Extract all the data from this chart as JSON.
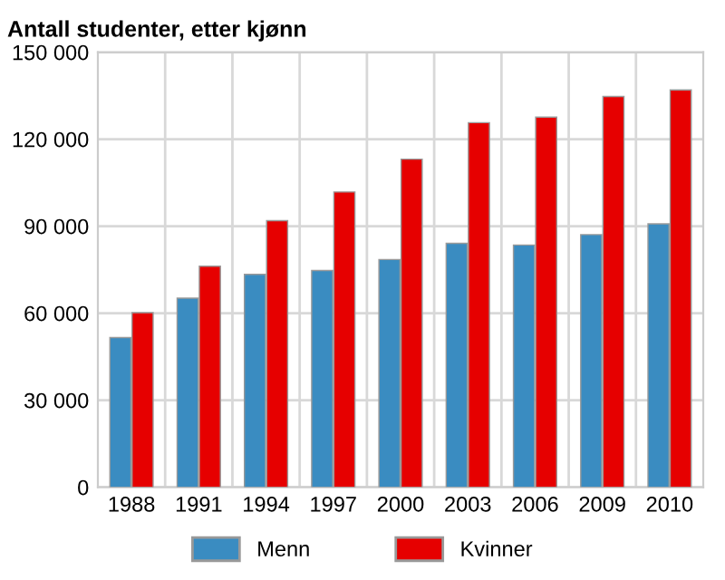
{
  "chart_data": {
    "type": "bar",
    "title": "Antall studenter, etter kjønn",
    "categories": [
      "1988",
      "1991",
      "1994",
      "1997",
      "2000",
      "2003",
      "2006",
      "2009",
      "2010"
    ],
    "series": [
      {
        "name": "Menn",
        "color": "#3a8cc1",
        "values": [
          51600,
          65200,
          73400,
          74700,
          78500,
          84100,
          83500,
          87100,
          90800
        ]
      },
      {
        "name": "Kvinner",
        "color": "#e60000",
        "values": [
          60200,
          76200,
          91900,
          101800,
          113100,
          125700,
          127600,
          134700,
          137000
        ]
      }
    ],
    "ylim": [
      0,
      150000
    ],
    "yticks": [
      {
        "value": 0,
        "label": "0"
      },
      {
        "value": 30000,
        "label": "30 000"
      },
      {
        "value": 60000,
        "label": "60 000"
      },
      {
        "value": 90000,
        "label": "90 000"
      },
      {
        "value": 120000,
        "label": "120 000"
      },
      {
        "value": 150000,
        "label": "150 000"
      }
    ],
    "grid": true,
    "legend": "bottom"
  }
}
